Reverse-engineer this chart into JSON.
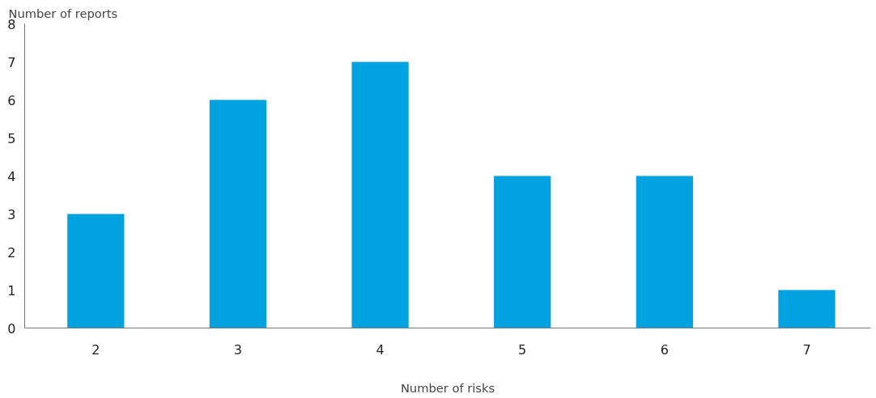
{
  "chart_data": {
    "type": "bar",
    "ylabel": "Number of reports",
    "xlabel": "Number of risks",
    "categories": [
      "2",
      "3",
      "4",
      "5",
      "6",
      "7"
    ],
    "values": [
      3,
      6,
      7,
      4,
      4,
      1
    ],
    "color": "#00a3e0",
    "ylim": [
      0,
      8
    ],
    "yticks": [
      0,
      1,
      2,
      3,
      4,
      5,
      6,
      7,
      8
    ],
    "grid": false
  }
}
